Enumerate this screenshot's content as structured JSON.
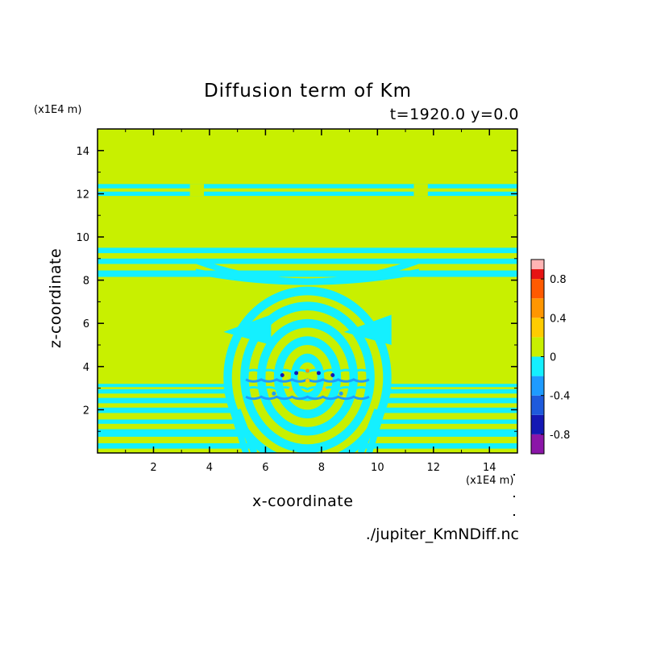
{
  "chart_data": {
    "type": "heatmap",
    "title": "Diffusion term of Km",
    "subtitle": "t=1920.0 y=0.0",
    "xlabel": "x-coordinate",
    "ylabel": "z-coordinate",
    "x_unit": "(x1E4 m)",
    "y_unit": "(x1E4 m)",
    "xlim": [
      0,
      15
    ],
    "ylim": [
      0,
      15
    ],
    "x_ticks": [
      "2",
      "4",
      "6",
      "8",
      "10",
      "12",
      "14"
    ],
    "y_ticks": [
      "2",
      "4",
      "6",
      "8",
      "10",
      "12",
      "14"
    ],
    "colorbar": {
      "levels": [
        -1.0,
        -0.8,
        -0.6,
        -0.4,
        -0.2,
        0,
        0.2,
        0.4,
        0.6,
        0.8,
        1.0
      ],
      "colors": [
        "#8b16a8",
        "#1418b4",
        "#1e5adc",
        "#1e9bff",
        "#14f0ff",
        "#c8f000",
        "#ffcc00",
        "#ff9600",
        "#ff5a00",
        "#e61414"
      ],
      "top_color": "#ffb4b4",
      "tick_labels": [
        "0.8",
        "0.4",
        "0",
        "-0.4",
        "-0.8"
      ],
      "placement": "right"
    },
    "background_level": 0,
    "features": [
      {
        "desc": "horizontal negative bands",
        "z": [
          0.3,
          0.6,
          1.4,
          2.0,
          2.5,
          2.9,
          8.3,
          8.9,
          9.4,
          12.0,
          12.4
        ]
      },
      {
        "desc": "central perturbation",
        "x_range": [
          4.5,
          10.5
        ],
        "z_range": [
          0.5,
          7.5
        ]
      },
      {
        "desc": "extreme values near",
        "x": 7.5,
        "z": 3.5
      }
    ]
  },
  "footer": {
    "source_file": "./jupiter_KmNDiff.nc"
  }
}
